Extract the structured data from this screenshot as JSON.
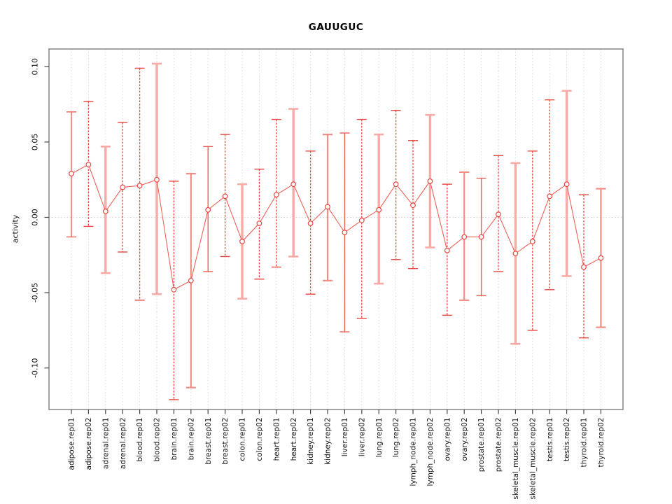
{
  "title": "GAUUGUC",
  "y_axis": {
    "label": "activity",
    "tick_labels": [
      "0.10",
      "0.05",
      "0.00",
      "-0.05",
      "-0.10"
    ],
    "tick_values": [
      0.1,
      0.05,
      0.0,
      -0.05,
      -0.1
    ]
  },
  "chart_data": {
    "type": "scatter",
    "title": "GAUUGUC",
    "xlabel": "",
    "ylabel": "activity",
    "ylim": [
      -0.128,
      0.112
    ],
    "grid": "vertical-dotted-per-category",
    "zero_reference_line": true,
    "legend": "none",
    "marker": "open-circle",
    "connected": true,
    "categories": [
      "adipose.rep01",
      "adipose.rep02",
      "adrenal.rep01",
      "adrenal.rep02",
      "blood.rep01",
      "blood.rep02",
      "brain.rep01",
      "brain.rep02",
      "breast.rep01",
      "breast.rep02",
      "colon.rep01",
      "colon.rep02",
      "heart.rep01",
      "heart.rep02",
      "kidney.rep01",
      "kidney.rep02",
      "liver.rep01",
      "liver.rep02",
      "lung.rep01",
      "lung.rep02",
      "lymph_node.rep01",
      "lymph_node.rep02",
      "ovary.rep01",
      "ovary.rep02",
      "prostate.rep01",
      "prostate.rep02",
      "skeletal_muscle.rep01",
      "skeletal_muscle.rep02",
      "testis.rep01",
      "testis.rep02",
      "thyroid.rep01",
      "thyroid.rep02"
    ],
    "series": [
      {
        "name": "activity",
        "values": [
          0.029,
          0.035,
          0.004,
          0.02,
          0.021,
          0.025,
          -0.048,
          -0.042,
          0.005,
          0.014,
          -0.016,
          -0.004,
          0.015,
          0.022,
          -0.004,
          0.007,
          -0.01,
          -0.002,
          0.005,
          0.022,
          0.008,
          0.024,
          -0.022,
          -0.013,
          -0.013,
          0.002,
          -0.024,
          -0.016,
          0.014,
          0.022,
          -0.033,
          -0.027
        ]
      }
    ],
    "error_bars": {
      "upper": [
        0.07,
        0.077,
        0.047,
        0.063,
        0.099,
        0.102,
        0.024,
        0.029,
        0.047,
        0.055,
        0.022,
        0.032,
        0.065,
        0.072,
        0.044,
        0.055,
        0.056,
        0.065,
        0.055,
        0.071,
        0.051,
        0.068,
        0.022,
        0.03,
        0.026,
        0.041,
        0.036,
        0.044,
        0.078,
        0.084,
        0.015,
        0.019
      ],
      "lower": [
        -0.013,
        -0.006,
        -0.037,
        -0.023,
        -0.055,
        -0.051,
        -0.121,
        -0.113,
        -0.036,
        -0.026,
        -0.054,
        -0.041,
        -0.033,
        -0.026,
        -0.051,
        -0.042,
        -0.076,
        -0.067,
        -0.044,
        -0.028,
        -0.034,
        -0.02,
        -0.065,
        -0.055,
        -0.052,
        -0.036,
        -0.084,
        -0.075,
        -0.048,
        -0.039,
        -0.08,
        -0.073
      ]
    },
    "bar_styles": [
      "solid",
      "dashed",
      "thick",
      "dashed",
      "dashed",
      "thick",
      "dashed",
      "pale",
      "solid",
      "dashed",
      "thick",
      "dashed",
      "dashed",
      "thick",
      "dashed",
      "pale",
      "solid",
      "dashed",
      "thick",
      "dashed",
      "dashed",
      "thick",
      "dashed",
      "pale",
      "solid",
      "dashed",
      "thick",
      "dashed",
      "dashed",
      "thick",
      "dashed",
      "pale"
    ]
  },
  "colors": {
    "point": "#e8463e",
    "line": "#ee6158",
    "bar_dashed": "#e8463e",
    "bar_solid": "#ee5f57",
    "bar_thick": "#f8aaa6",
    "bar_pale": "#f28d86",
    "grid": "#d9d9d9",
    "zero_line": "#cfcfcf",
    "box": "#8c8c8c",
    "tick": "#444444",
    "text": "#111111"
  }
}
